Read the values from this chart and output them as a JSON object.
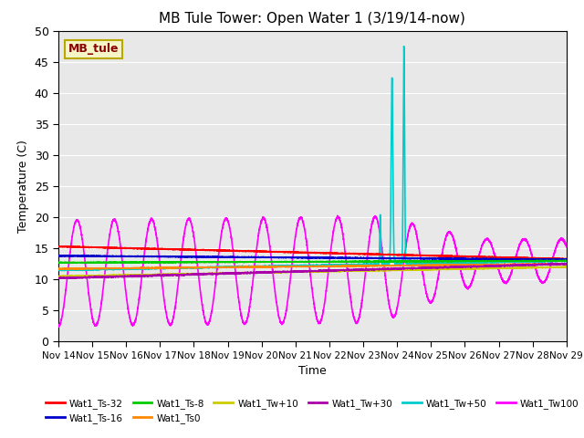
{
  "title": "MB Tule Tower: Open Water 1 (3/19/14-now)",
  "xlabel": "Time",
  "ylabel": "Temperature (C)",
  "xlim": [
    0,
    15
  ],
  "ylim": [
    0,
    50
  ],
  "yticks": [
    0,
    5,
    10,
    15,
    20,
    25,
    30,
    35,
    40,
    45,
    50
  ],
  "xtick_labels": [
    "Nov 14",
    "Nov 15",
    "Nov 16",
    "Nov 17",
    "Nov 18",
    "Nov 19",
    "Nov 20",
    "Nov 21",
    "Nov 22",
    "Nov 23",
    "Nov 24",
    "Nov 25",
    "Nov 26",
    "Nov 27",
    "Nov 28",
    "Nov 29"
  ],
  "bg_color": "#e8e8e8",
  "series": {
    "Wat1_Ts-32": {
      "color": "#ff0000",
      "lw": 1.2
    },
    "Wat1_Ts-16": {
      "color": "#0000cc",
      "lw": 1.2
    },
    "Wat1_Ts-8": {
      "color": "#00cc00",
      "lw": 1.2
    },
    "Wat1_Ts0": {
      "color": "#ff8800",
      "lw": 1.2
    },
    "Wat1_Tw+10": {
      "color": "#cccc00",
      "lw": 1.2
    },
    "Wat1_Tw+30": {
      "color": "#aa00aa",
      "lw": 1.2
    },
    "Wat1_Tw+50": {
      "color": "#00cccc",
      "lw": 1.2
    },
    "Wat1_Tw100": {
      "color": "#ff00ff",
      "lw": 1.2
    }
  },
  "watermark_text": "MB_tule",
  "watermark_color": "#8b0000",
  "watermark_bg": "#f5f5c8",
  "watermark_border": "#b8a800"
}
